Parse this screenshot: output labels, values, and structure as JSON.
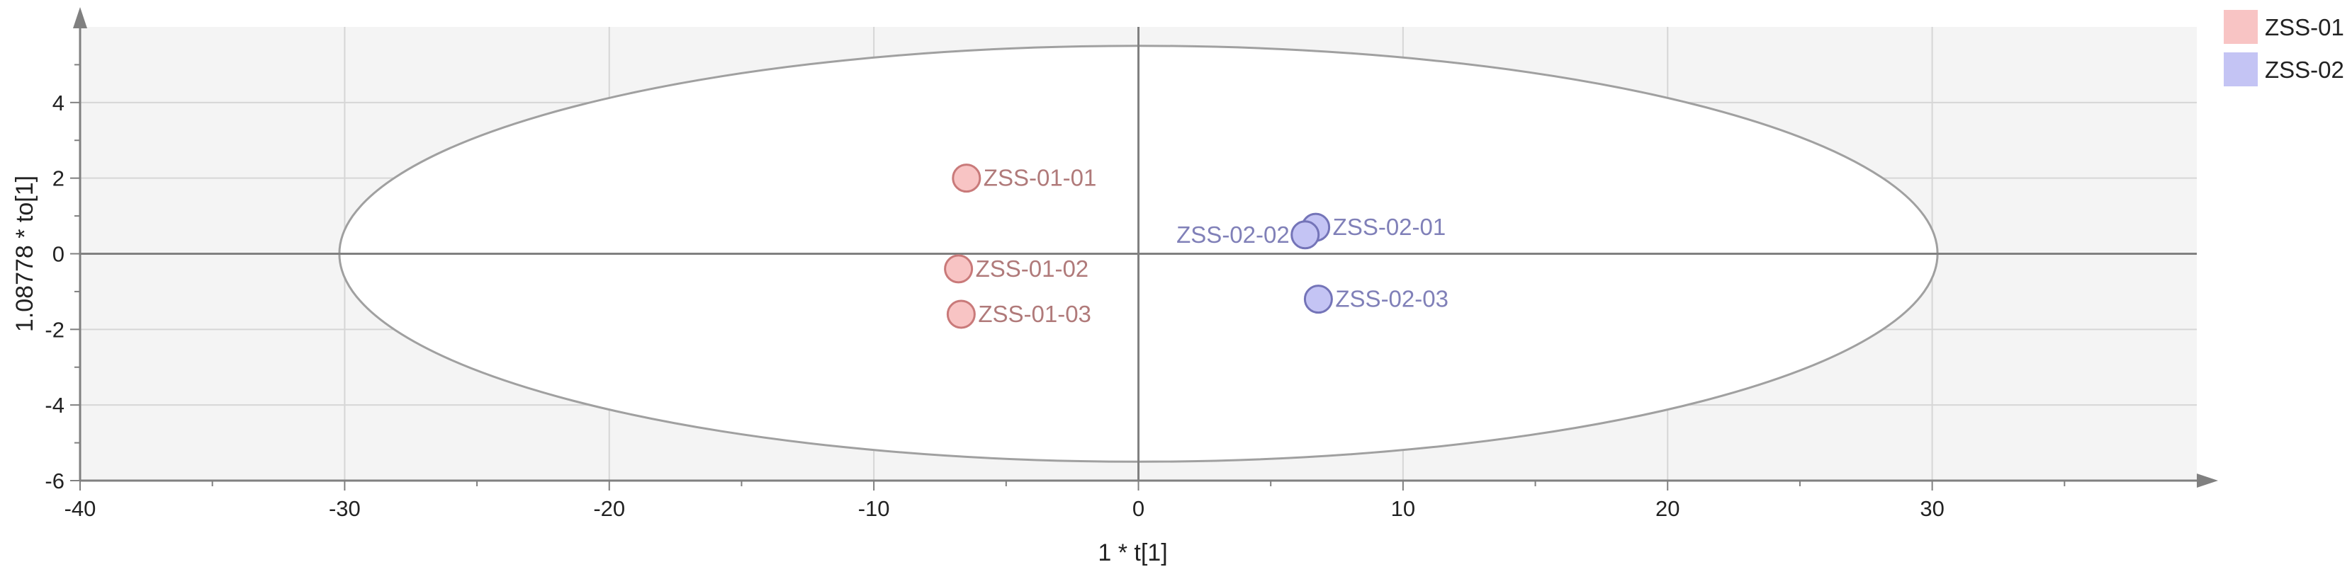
{
  "chart_data": {
    "type": "scatter",
    "title": "",
    "xlabel": "1 * t[1]",
    "ylabel": "1.08778 * to[1]",
    "xlim": [
      -40,
      40
    ],
    "ylim": [
      -6,
      6
    ],
    "xticks": [
      -40,
      -30,
      -20,
      -10,
      0,
      10,
      20,
      30
    ],
    "yticks": [
      -6,
      -4,
      -2,
      0,
      2,
      4
    ],
    "grid": true,
    "legend_position": "right",
    "confidence_ellipse": {
      "center": [
        0,
        0
      ],
      "x_radius": 30.2,
      "y_radius": 5.5
    },
    "series": [
      {
        "name": "ZSS-01",
        "color": "#f8c4c4",
        "stroke": "#c97a7a",
        "label_color": "#b07a7a",
        "points": [
          {
            "label": "ZSS-01-01",
            "x": -6.5,
            "y": 2.0
          },
          {
            "label": "ZSS-01-02",
            "x": -6.8,
            "y": -0.4
          },
          {
            "label": "ZSS-01-03",
            "x": -6.7,
            "y": -1.6
          }
        ]
      },
      {
        "name": "ZSS-02",
        "color": "#c4c4f4",
        "stroke": "#7474b8",
        "label_color": "#8080b8",
        "points": [
          {
            "label": "ZSS-02-01",
            "x": 6.7,
            "y": 0.7
          },
          {
            "label": "ZSS-02-02",
            "x": 6.3,
            "y": 0.5
          },
          {
            "label": "ZSS-02-03",
            "x": 6.8,
            "y": -1.2
          }
        ]
      }
    ]
  }
}
